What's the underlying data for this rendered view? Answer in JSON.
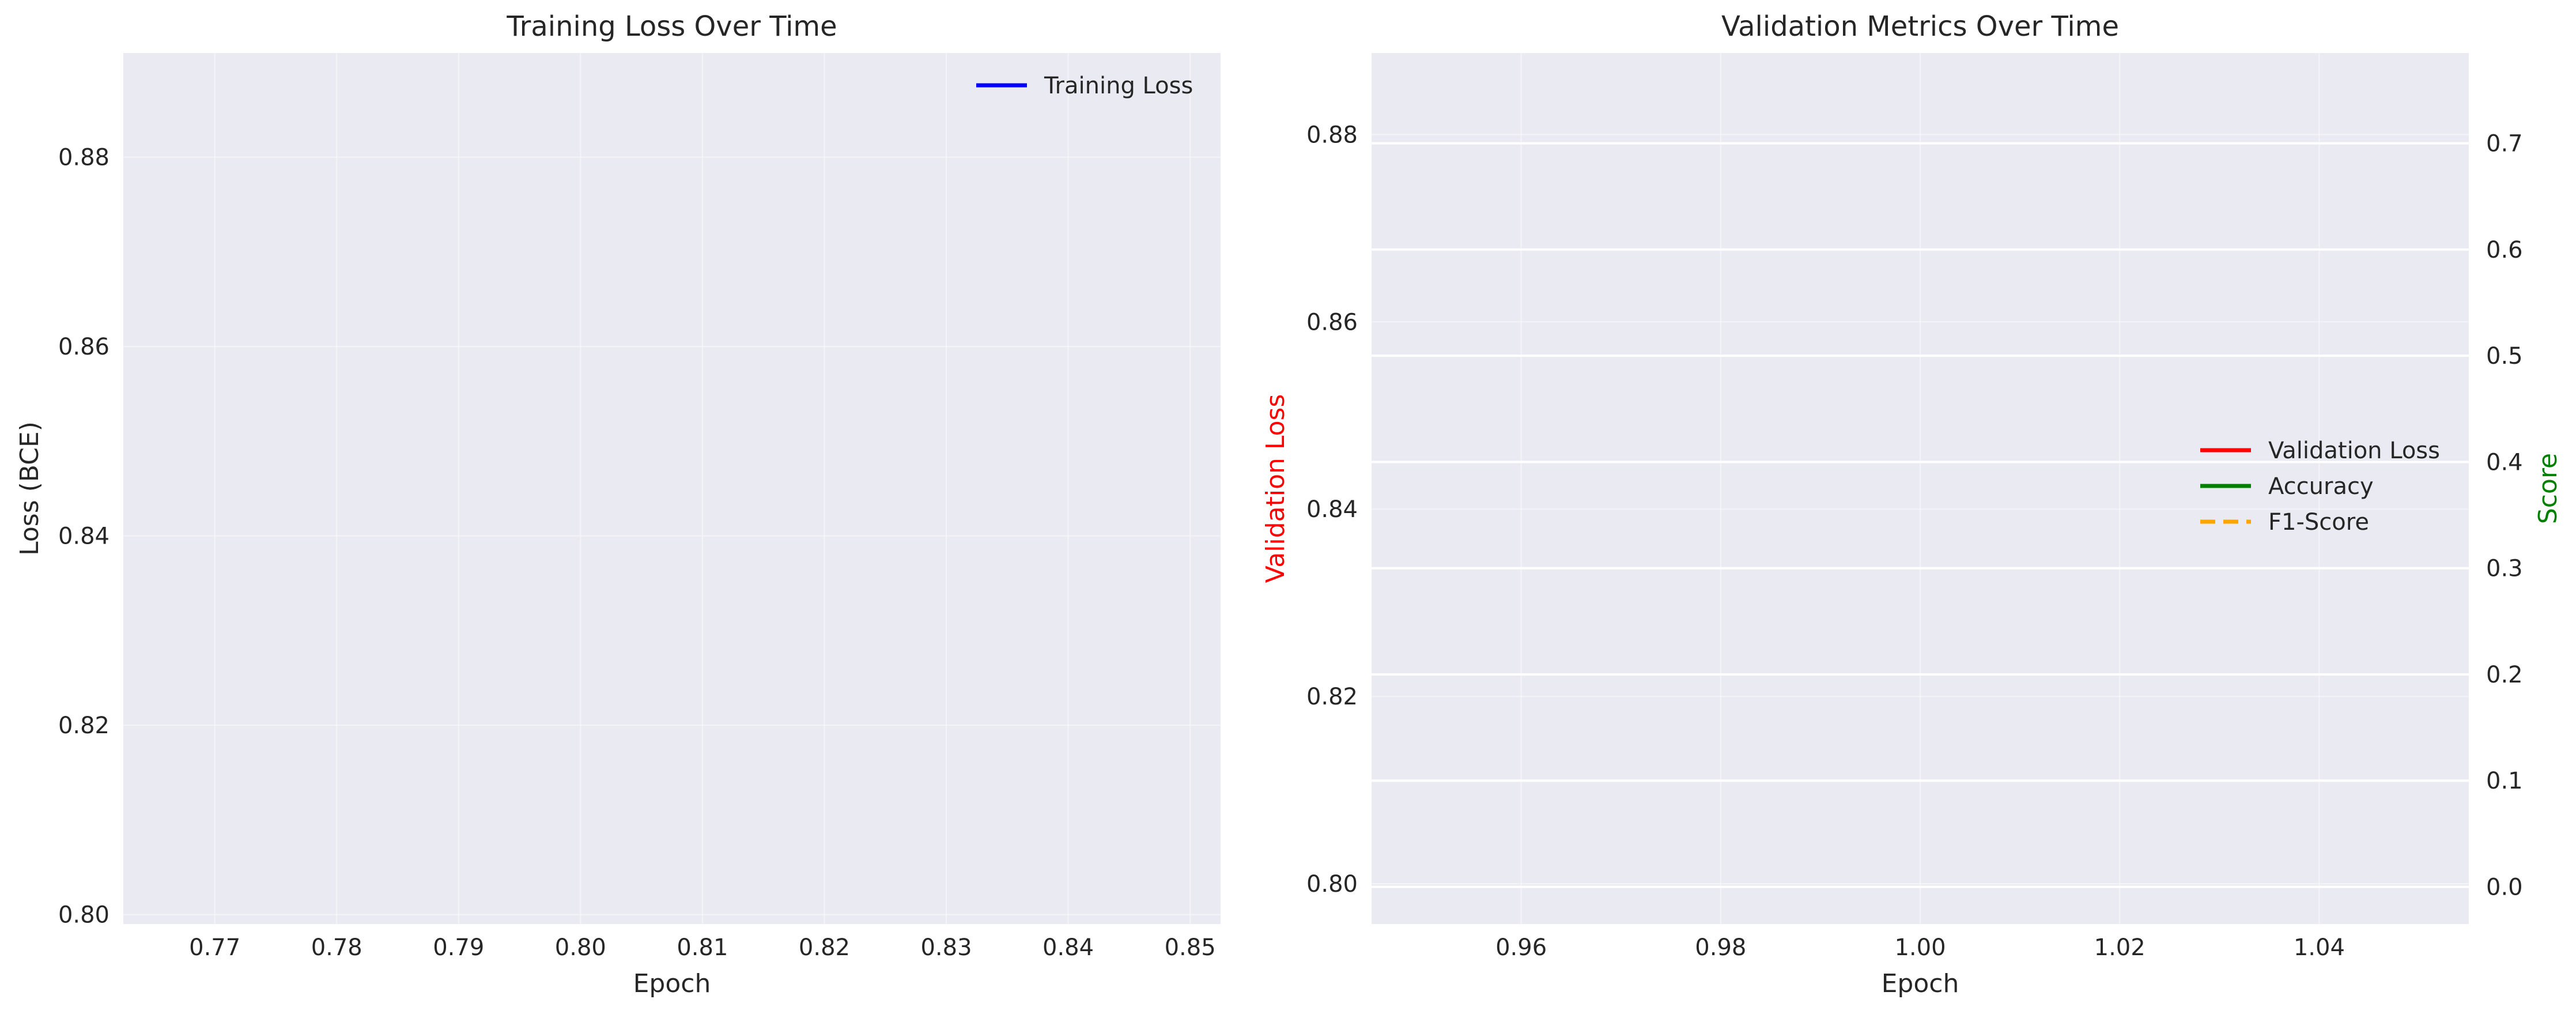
{
  "figure": {
    "background": "#ffffff",
    "axes_background": "#eaeaf2",
    "grid_color": "#ffffff"
  },
  "chart_data": [
    {
      "type": "line",
      "title": "Training Loss Over Time",
      "xlabel": "Epoch",
      "ylabel": "Loss (BCE)",
      "xlim": [
        0.7625,
        0.8525
      ],
      "ylim": [
        0.799,
        0.891
      ],
      "xticks": [
        0.77,
        0.78,
        0.79,
        0.8,
        0.81,
        0.82,
        0.83,
        0.84,
        0.85
      ],
      "xtick_labels": [
        "0.77",
        "0.78",
        "0.79",
        "0.80",
        "0.81",
        "0.82",
        "0.83",
        "0.84",
        "0.85"
      ],
      "yticks": [
        0.8,
        0.82,
        0.84,
        0.86,
        0.88
      ],
      "ytick_labels": [
        "0.80",
        "0.82",
        "0.84",
        "0.86",
        "0.88"
      ],
      "grid": true,
      "legend_position": "top-right",
      "series": [
        {
          "name": "Training Loss",
          "color": "#0000ff",
          "style": "solid",
          "x": [],
          "y": []
        }
      ]
    },
    {
      "type": "line",
      "title": "Validation Metrics Over Time",
      "xlabel": "Epoch",
      "ylabel": "Validation Loss",
      "ylabel_color": "#ff0000",
      "y2label": "Score",
      "y2label_color": "#008000",
      "xlim": [
        0.945,
        1.055
      ],
      "ylim": [
        0.7957,
        0.8887
      ],
      "y2lim": [
        -0.035,
        0.785
      ],
      "xticks": [
        0.96,
        0.98,
        1.0,
        1.02,
        1.04
      ],
      "xtick_labels": [
        "0.96",
        "0.98",
        "1.00",
        "1.02",
        "1.04"
      ],
      "yticks": [
        0.8,
        0.82,
        0.84,
        0.86,
        0.88
      ],
      "ytick_labels": [
        "0.80",
        "0.82",
        "0.84",
        "0.86",
        "0.88"
      ],
      "y2ticks": [
        0.0,
        0.1,
        0.2,
        0.3,
        0.4,
        0.5,
        0.6,
        0.7
      ],
      "y2tick_labels": [
        "0.0",
        "0.1",
        "0.2",
        "0.3",
        "0.4",
        "0.5",
        "0.6",
        "0.7"
      ],
      "grid": true,
      "legend_position": "center-right",
      "series": [
        {
          "name": "Validation Loss",
          "color": "#ff0000",
          "style": "solid",
          "axis": "left",
          "x": [],
          "y": []
        },
        {
          "name": "Accuracy",
          "color": "#008000",
          "style": "solid",
          "axis": "right",
          "x": [],
          "y": []
        },
        {
          "name": "F1-Score",
          "color": "#ffa500",
          "style": "dashed",
          "axis": "right",
          "x": [],
          "y": []
        }
      ]
    }
  ]
}
